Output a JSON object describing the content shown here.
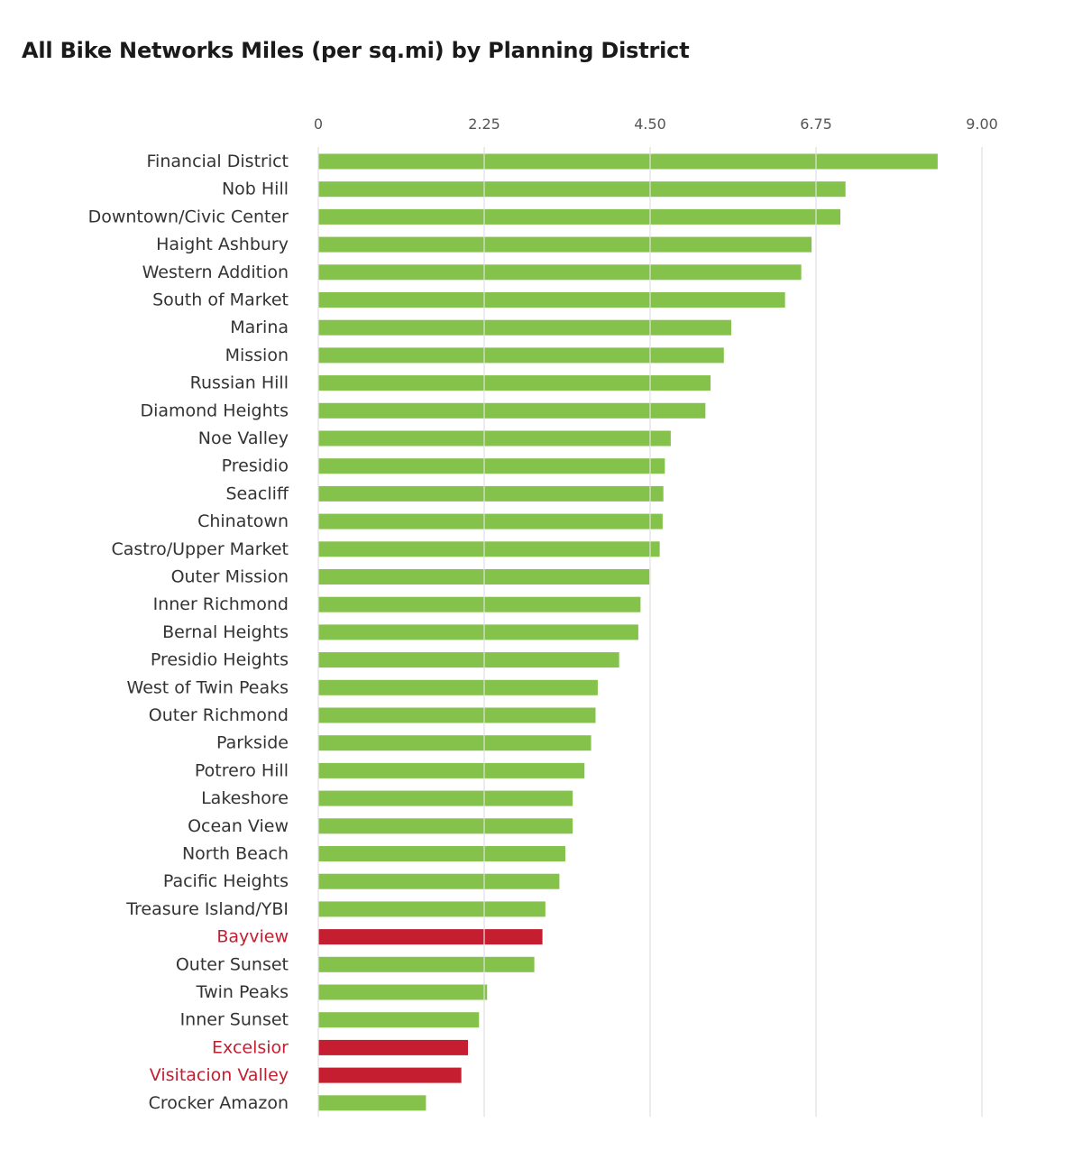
{
  "chart_data": {
    "type": "bar",
    "orientation": "horizontal",
    "title": "All Bike Networks Miles (per sq.mi) by Planning District",
    "xlabel": "",
    "ylabel": "",
    "xlim": [
      0,
      9
    ],
    "x_ticks": [
      "0",
      "2.25",
      "4.50",
      "6.75",
      "9.00"
    ],
    "x_tick_values": [
      0,
      2.25,
      4.5,
      6.75,
      9.0
    ],
    "grid": true,
    "axis_position": "top",
    "colors": {
      "default": "#84c24b",
      "highlight": "#c41e30",
      "grid": "#e0e0e0"
    },
    "categories": [
      "Financial District",
      "Nob Hill",
      "Downtown/Civic Center",
      "Haight Ashbury",
      "Western Addition",
      "South of Market",
      "Marina",
      "Mission",
      "Russian Hill",
      "Diamond Heights",
      "Noe Valley",
      "Presidio",
      "Seacliff",
      "Chinatown",
      "Castro/Upper Market",
      "Outer Mission",
      "Inner Richmond",
      "Bernal Heights",
      "Presidio Heights",
      "West of Twin Peaks",
      "Outer Richmond",
      "Parkside",
      "Potrero Hill",
      "Lakeshore",
      "Ocean View",
      "North Beach",
      "Pacific Heights",
      "Treasure Island/YBI",
      "Bayview",
      "Outer Sunset",
      "Twin Peaks",
      "Inner Sunset",
      "Excelsior",
      "Visitacion Valley",
      "Crocker Amazon"
    ],
    "values": [
      8.4,
      7.15,
      7.08,
      6.69,
      6.55,
      6.33,
      5.6,
      5.5,
      5.32,
      5.25,
      4.78,
      4.7,
      4.68,
      4.67,
      4.63,
      4.49,
      4.37,
      4.34,
      4.08,
      3.79,
      3.76,
      3.7,
      3.61,
      3.45,
      3.45,
      3.35,
      3.27,
      3.08,
      3.04,
      2.93,
      2.29,
      2.18,
      2.03,
      1.94,
      1.46
    ],
    "highlighted": [
      "Bayview",
      "Excelsior",
      "Visitacion Valley"
    ]
  }
}
